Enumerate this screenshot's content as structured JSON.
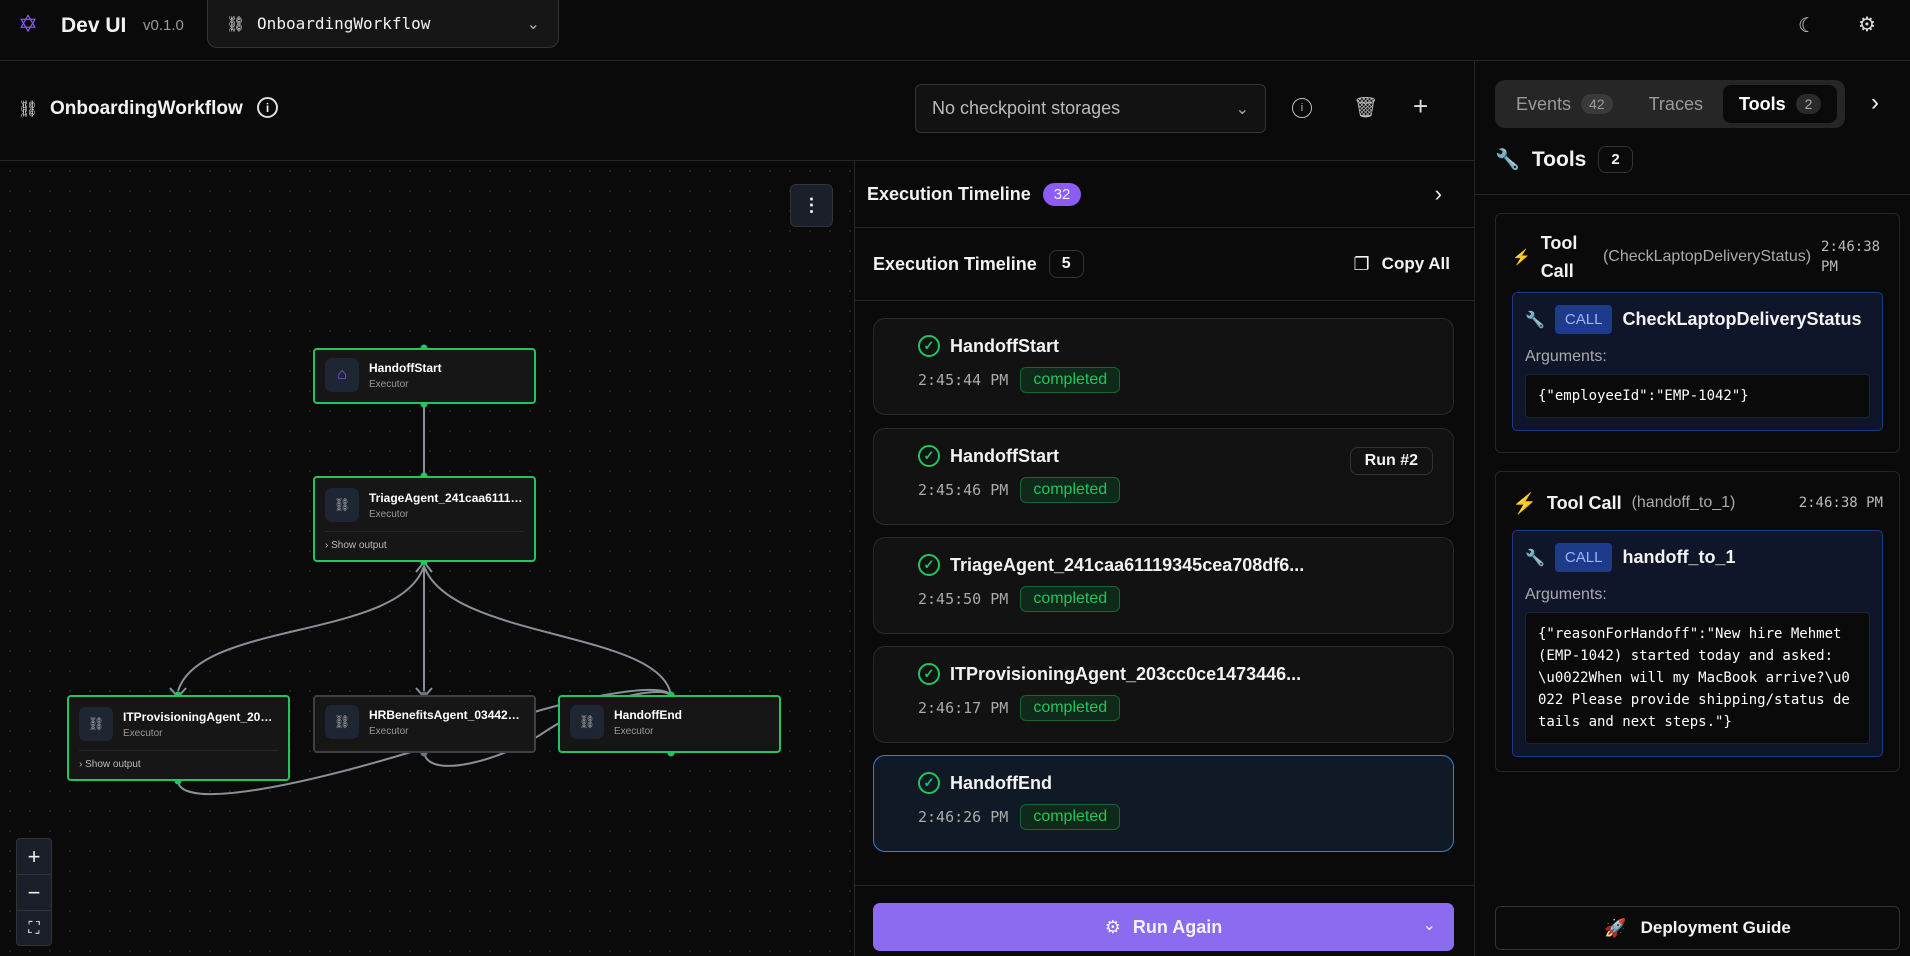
{
  "app": {
    "title": "Dev UI",
    "version": "v0.1.0",
    "workflow_select": "OnboardingWorkflow",
    "accent": "#8b5cf6"
  },
  "page": {
    "title": "OnboardingWorkflow",
    "checkpoint_select": "No checkpoint storages"
  },
  "graph": {
    "nodes": [
      {
        "id": "start",
        "title": "HandoffStart",
        "subtitle": "Executor",
        "icon": "home-icon",
        "status": "completed"
      },
      {
        "id": "triage",
        "title": "TriageAgent_241caa61119...",
        "subtitle": "Executor",
        "icon": "workflow-icon",
        "show_output": "Show output",
        "status": "completed"
      },
      {
        "id": "it",
        "title": "ITProvisioningAgent_203c...",
        "subtitle": "Executor",
        "icon": "workflow-icon",
        "show_output": "Show output",
        "status": "completed"
      },
      {
        "id": "hr",
        "title": "HRBenefitsAgent_03442a...",
        "subtitle": "Executor",
        "icon": "workflow-icon",
        "status": "idle"
      },
      {
        "id": "end",
        "title": "HandoffEnd",
        "subtitle": "Executor",
        "icon": "workflow-icon",
        "status": "completed"
      }
    ]
  },
  "timeline": {
    "header": "Execution Timeline",
    "header_count": "32",
    "sub_header": "Execution Timeline",
    "sub_count": "5",
    "copy_all": "Copy All",
    "items": [
      {
        "name": "HandoffStart",
        "time": "2:45:44 PM",
        "status": "completed"
      },
      {
        "name": "HandoffStart",
        "time": "2:45:46 PM",
        "status": "completed",
        "run": "Run #2"
      },
      {
        "name": "TriageAgent_241caa61119345cea708df6...",
        "time": "2:45:50 PM",
        "status": "completed"
      },
      {
        "name": "ITProvisioningAgent_203cc0ce1473446...",
        "time": "2:46:17 PM",
        "status": "completed"
      },
      {
        "name": "HandoffEnd",
        "time": "2:46:26 PM",
        "status": "completed"
      }
    ],
    "run_again": "Run Again"
  },
  "right": {
    "tabs": [
      {
        "label": "Events",
        "count": "42"
      },
      {
        "label": "Traces"
      },
      {
        "label": "Tools",
        "count": "2",
        "active": true
      }
    ],
    "tools_title": "Tools",
    "tools_count": "2",
    "calls": [
      {
        "label": "Tool Call",
        "name_paren": "(CheckLaptopDeliveryStatus)",
        "time": "2:46:38 PM",
        "badge": "CALL",
        "name": "CheckLaptopDeliveryStatus",
        "args_label": "Arguments:",
        "args": "{\"employeeId\":\"EMP-1042\"}"
      },
      {
        "label": "Tool Call",
        "name_paren": "(handoff_to_1)",
        "time": "2:46:38 PM",
        "badge": "CALL",
        "name": "handoff_to_1",
        "args_label": "Arguments:",
        "args": "{\"reasonForHandoff\":\"New hire Mehmet (EMP-1042) started today and asked: \\u0022When will my MacBook arrive?\\u0022 Please provide shipping/status details and next steps.\"}"
      }
    ],
    "deploy": "Deployment Guide"
  }
}
